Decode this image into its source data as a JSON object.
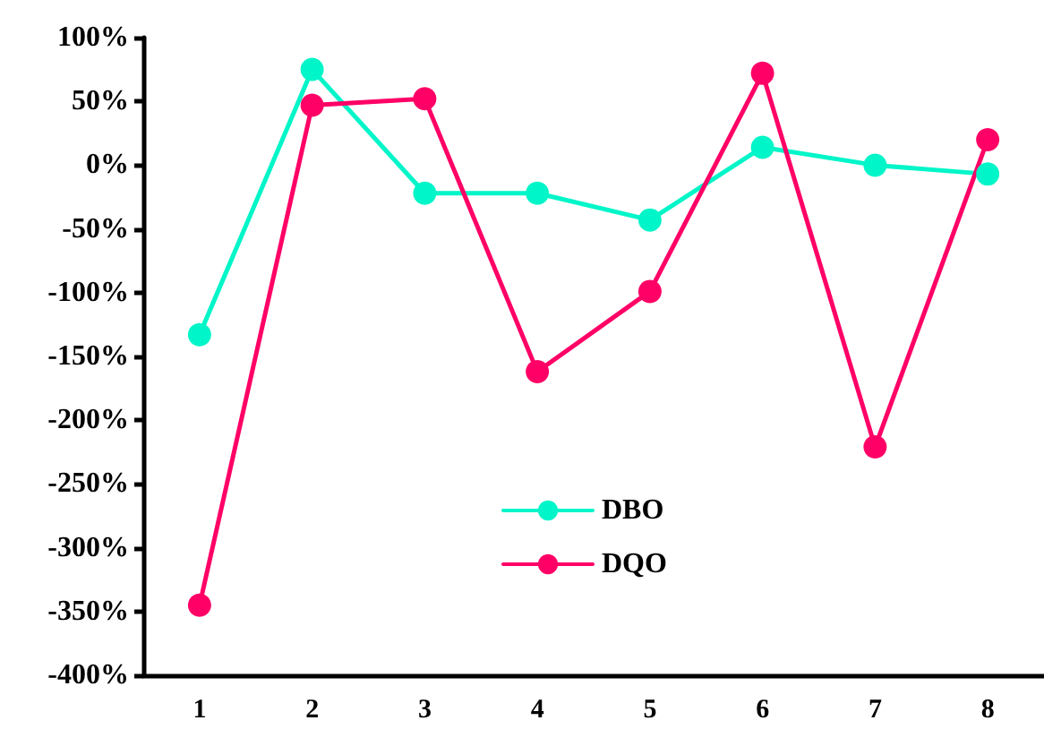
{
  "chart_data": {
    "type": "line",
    "categories": [
      "1",
      "2",
      "3",
      "4",
      "5",
      "6",
      "7",
      "8"
    ],
    "series": [
      {
        "name": "DBO",
        "color": "#00f5c8",
        "values": [
          -133,
          75,
          -22,
          -22,
          -43,
          14,
          0,
          -7
        ]
      },
      {
        "name": "DQO",
        "color": "#ff0066",
        "values": [
          -345,
          47,
          52,
          -162,
          -99,
          72,
          -221,
          20
        ]
      }
    ],
    "ylim": [
      -400,
      100
    ],
    "yticks": [
      {
        "value": -400,
        "label": "-400%"
      },
      {
        "value": -350,
        "label": "-350%"
      },
      {
        "value": -300,
        "label": "-300%"
      },
      {
        "value": -250,
        "label": "-250%"
      },
      {
        "value": -200,
        "label": "-200%"
      },
      {
        "value": -150,
        "label": "-150%"
      },
      {
        "value": -100,
        "label": "-100%"
      },
      {
        "value": -50,
        "label": "-50%"
      },
      {
        "value": 0,
        "label": "0%"
      },
      {
        "value": 50,
        "label": "50%"
      },
      {
        "value": 100,
        "label": "100%"
      }
    ],
    "grid": false,
    "legend": "center",
    "marker": "circle",
    "line_style": "solid"
  }
}
